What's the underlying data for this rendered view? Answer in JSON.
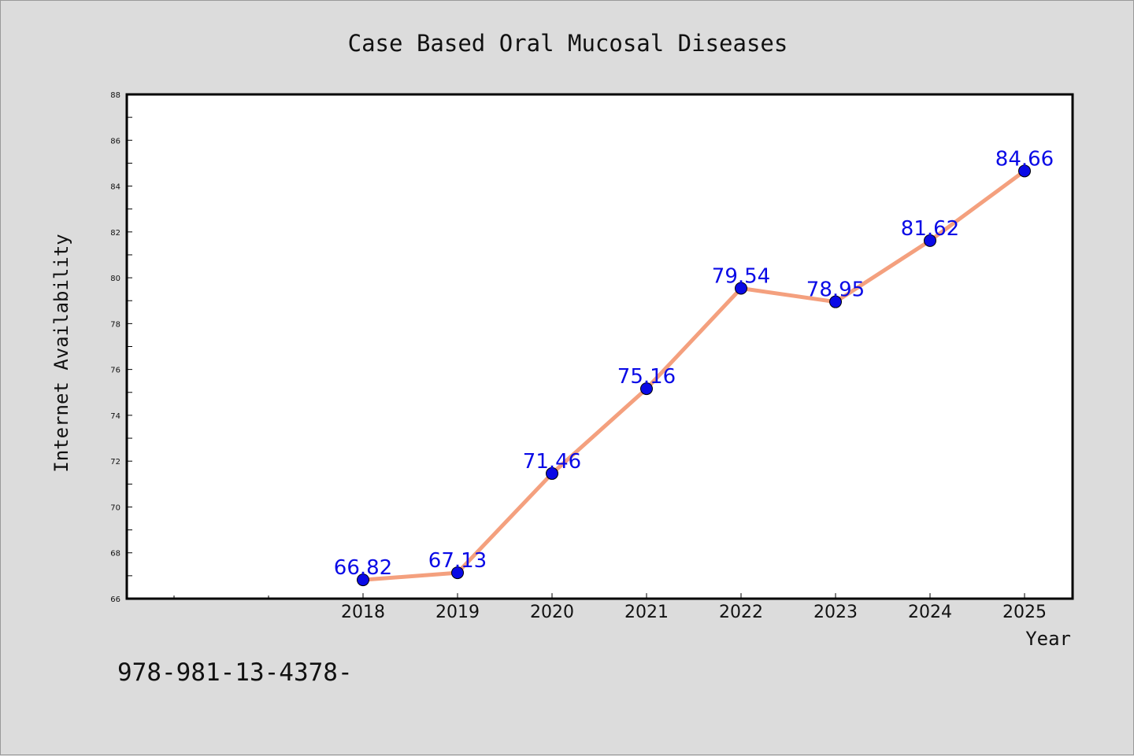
{
  "chart_data": {
    "type": "line",
    "title": "Case Based Oral Mucosal Diseases",
    "xlabel": "Year",
    "ylabel": "Internet Availability",
    "categories": [
      "2018",
      "2019",
      "2020",
      "2021",
      "2022",
      "2023",
      "2024",
      "2025"
    ],
    "series": [
      {
        "values": [
          66.82,
          67.13,
          71.46,
          75.16,
          79.54,
          78.95,
          81.62,
          84.66
        ]
      }
    ],
    "data_labels": [
      "66.82",
      "67.13",
      "71.46",
      "75.16",
      "79.54",
      "78.95",
      "81.62",
      "84.66"
    ],
    "ylim": [
      66,
      88
    ],
    "yticks": [
      "66",
      "68",
      "70",
      "72",
      "74",
      "76",
      "78",
      "80",
      "82",
      "84",
      "86",
      "88"
    ],
    "grid": false,
    "legend": "none",
    "line_color": "#f4a07e",
    "marker_color": "#0a0ae6",
    "label_color": "#0a0ae6"
  },
  "footnote": "978-981-13-4378-"
}
